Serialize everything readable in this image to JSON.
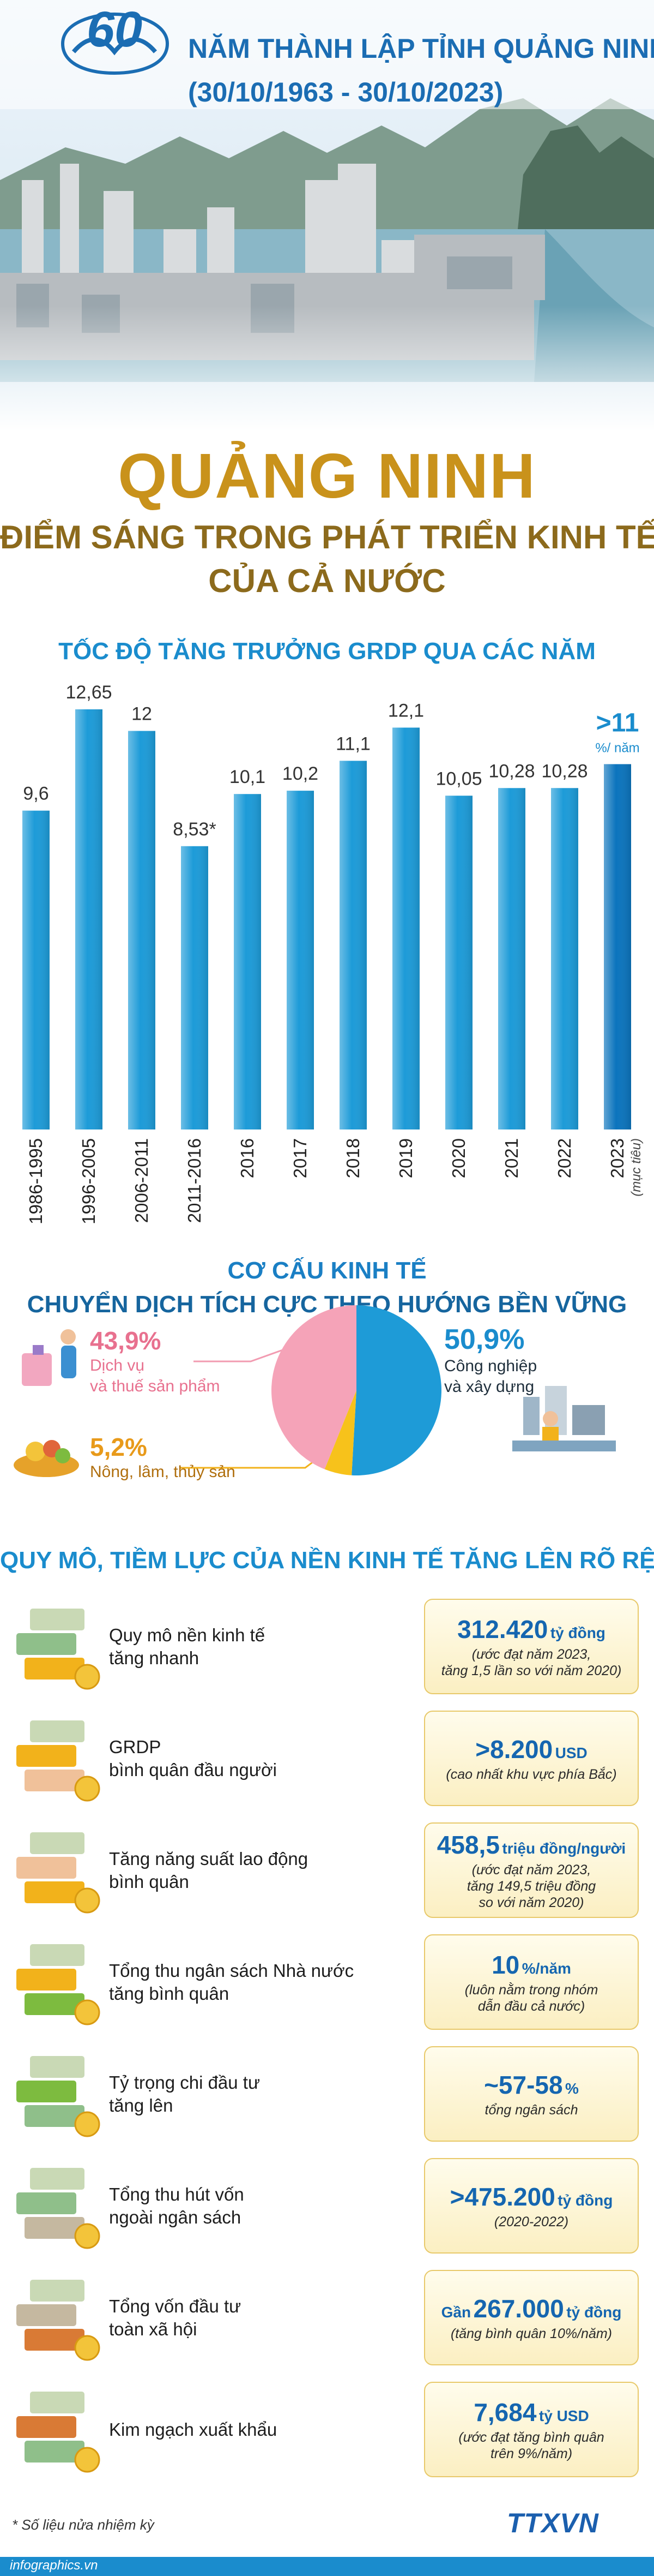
{
  "header": {
    "logo": "60",
    "line1": "NĂM THÀNH LẬP TỈNH QUẢNG NINH",
    "line2": "(30/10/1963 - 30/10/2023)"
  },
  "title": "QUẢNG NINH",
  "subtitle": [
    "ĐIỂM SÁNG TRONG PHÁT TRIỂN KINH TẾ",
    "CỦA CẢ NƯỚC"
  ],
  "chart_data": [
    {
      "type": "bar",
      "title": "TỐC ĐỘ TĂNG TRƯỞNG GRDP QUA CÁC NĂM",
      "categories": [
        "1986-1995",
        "1996-2005",
        "2006-2011",
        "2011-2016",
        "2016",
        "2017",
        "2018",
        "2019",
        "2020",
        "2021",
        "2022",
        "2023"
      ],
      "values": [
        9.6,
        12.65,
        12,
        8.53,
        10.1,
        10.2,
        11.1,
        12.1,
        10.05,
        10.28,
        10.28,
        11
      ],
      "value_labels": [
        "9,6",
        "12,65",
        "12",
        "8,53*",
        "10,1",
        "10,2",
        "11,1",
        "12,1",
        "10,05",
        "10,28",
        "10,28",
        ">11"
      ],
      "unit": "%/ năm",
      "annotation": "(mục tiêu)",
      "colors": [
        "#1d9bd8",
        "#1d9bd8",
        "#1d9bd8",
        "#1d9bd8",
        "#1d9bd8",
        "#1d9bd8",
        "#1d9bd8",
        "#1d9bd8",
        "#1d9bd8",
        "#1d9bd8",
        "#1d9bd8",
        "#0b74bd"
      ]
    },
    {
      "type": "pie",
      "title": "CƠ CẤU KINH TẾ",
      "subtitle": "CHUYỂN DỊCH TÍCH CỰC THEO HƯỚNG BỀN VỮNG",
      "categories": [
        "Công nghiệp\nvà xây dựng",
        "Nông, lâm, thủy sản",
        "Dịch vụ\nvà thuế sản phẩm"
      ],
      "values": [
        50.9,
        5.2,
        43.9
      ],
      "value_labels": [
        "50,9%",
        "5,2%",
        "43,9%"
      ],
      "colors": [
        "#1e9bd7",
        "#f7c21b",
        "#f5a3b8"
      ]
    }
  ],
  "section": {
    "title": "QUY MÔ, TIỀM LỰC CỦA NỀN KINH TẾ TĂNG LÊN RÕ RỆT",
    "items": [
      {
        "label": "Quy mô nền kinh tế\ntăng nhanh",
        "value": "312.420",
        "unit": "tỷ đồng",
        "note": "(ước đạt năm 2023,\ntăng 1,5 lần so với năm 2020)"
      },
      {
        "label": "GRDP\nbình quân đầu người",
        "value": ">8.200",
        "unit": "USD",
        "note": "(cao nhất khu vực phía Bắc)"
      },
      {
        "label": "Tăng năng suất lao động\nbình quân",
        "value": "458,5",
        "unit": "triệu đồng/người",
        "note": "(ước đạt năm 2023,\ntăng 149,5 triệu đồng\nso với năm 2020)"
      },
      {
        "label": "Tổng thu ngân sách Nhà nước\ntăng bình quân",
        "value": "10",
        "unit": "%/năm",
        "note": "(luôn nằm trong nhóm\ndẫn đầu cả nước)"
      },
      {
        "label": "Tỷ trọng chi đầu tư\ntăng lên",
        "value": "~57-58",
        "unit": "%",
        "note": "tổng ngân sách"
      },
      {
        "label": "Tổng thu hút vốn\nngoài ngân sách",
        "value": ">475.200",
        "unit": "tỷ đồng",
        "note": "(2020-2022)"
      },
      {
        "label": "Tổng vốn đầu tư\ntoàn xã hội",
        "prefix": "Gần",
        "value": "267.000",
        "unit": "tỷ đồng",
        "note": "(tăng bình quân 10%/năm)"
      },
      {
        "label": "Kim ngạch xuất khẩu",
        "value": "7,684",
        "unit": "tỷ USD",
        "note": "(ước đạt tăng bình quân\ntrên 9%/năm)"
      }
    ]
  },
  "footer": {
    "note": "* Số liệu nửa nhiệm kỳ",
    "site": "infographics.vn",
    "agency": "TTXVN"
  }
}
